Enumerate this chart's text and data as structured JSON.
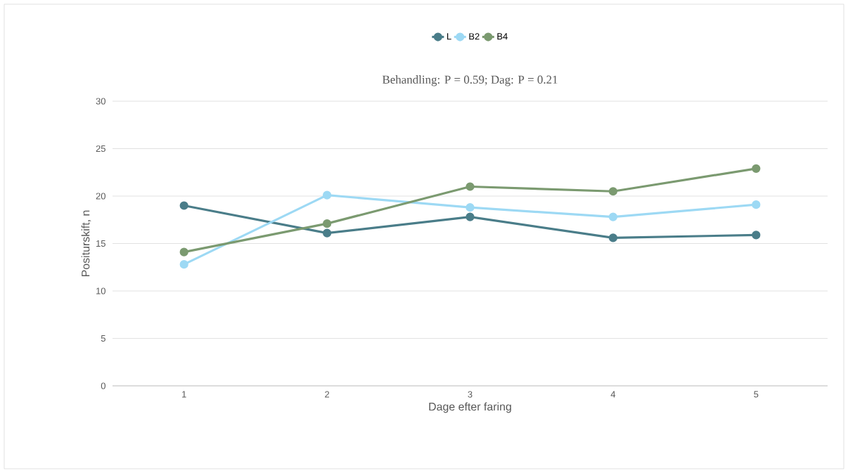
{
  "chart_data": {
    "type": "line",
    "title": "Behandling: P = 0.59; Dag: P = 0.21",
    "xlabel": "Dage efter faring",
    "ylabel": "Positurskift, n",
    "categories": [
      "1",
      "2",
      "3",
      "4",
      "5"
    ],
    "series": [
      {
        "name": "L",
        "color": "#4a7d89",
        "values": [
          19.0,
          16.1,
          17.8,
          15.6,
          15.9
        ]
      },
      {
        "name": "B2",
        "color": "#9dd9f4",
        "values": [
          12.8,
          20.1,
          18.8,
          17.8,
          19.1
        ]
      },
      {
        "name": "B4",
        "color": "#7b9a70",
        "values": [
          14.1,
          17.1,
          21.0,
          20.5,
          22.9
        ]
      }
    ],
    "ylim": [
      0,
      30
    ],
    "yticks": [
      0,
      5,
      10,
      15,
      20,
      25,
      30
    ],
    "grid": "y",
    "legend": "top",
    "marker": "circle",
    "line_style": "solid"
  }
}
